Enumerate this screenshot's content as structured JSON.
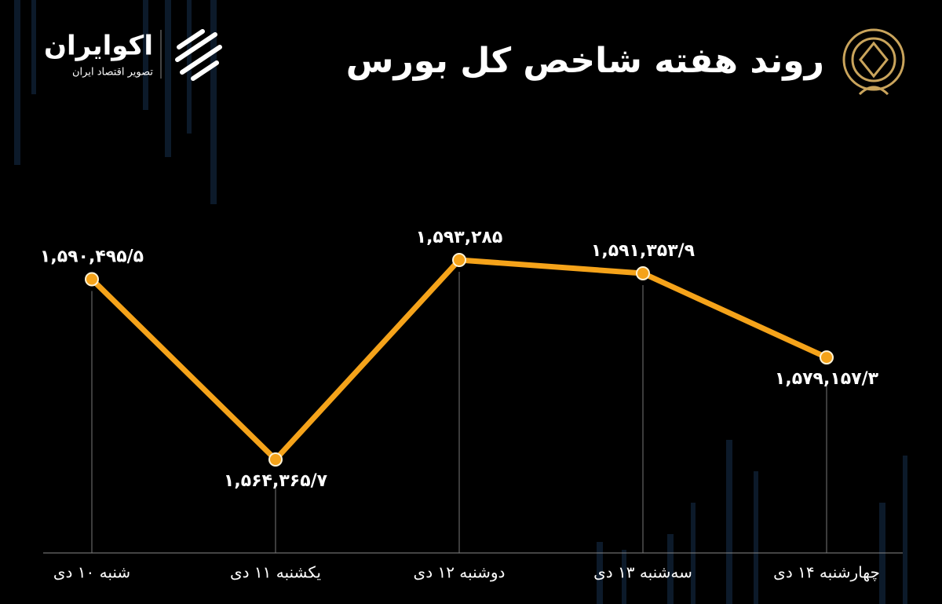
{
  "chart_data": {
    "type": "line",
    "title": "روند هفته شاخص کل بورس",
    "categories": [
      "شنبه ۱۰ دی",
      "یکشنبه ۱۱ دی",
      "دوشنبه ۱۲ دی",
      "سه‌شنبه ۱۳ دی",
      "چهارشنبه ۱۴ دی"
    ],
    "values": [
      1590495.5,
      1564365.7,
      1593285,
      1591353.9,
      1579157.3
    ],
    "value_labels": [
      "۱,۵۹۰,۴۹۵/۵",
      "۱,۵۶۴,۳۶۵/۷",
      "۱,۵۹۳,۲۸۵",
      "۱,۵۹۱,۳۵۳/۹",
      "۱,۵۷۹,۱۵۷/۳"
    ],
    "color": "#f5a31a"
  },
  "logo": {
    "name": "اکوایران",
    "tagline": "تصویر اقتصاد ایران"
  }
}
